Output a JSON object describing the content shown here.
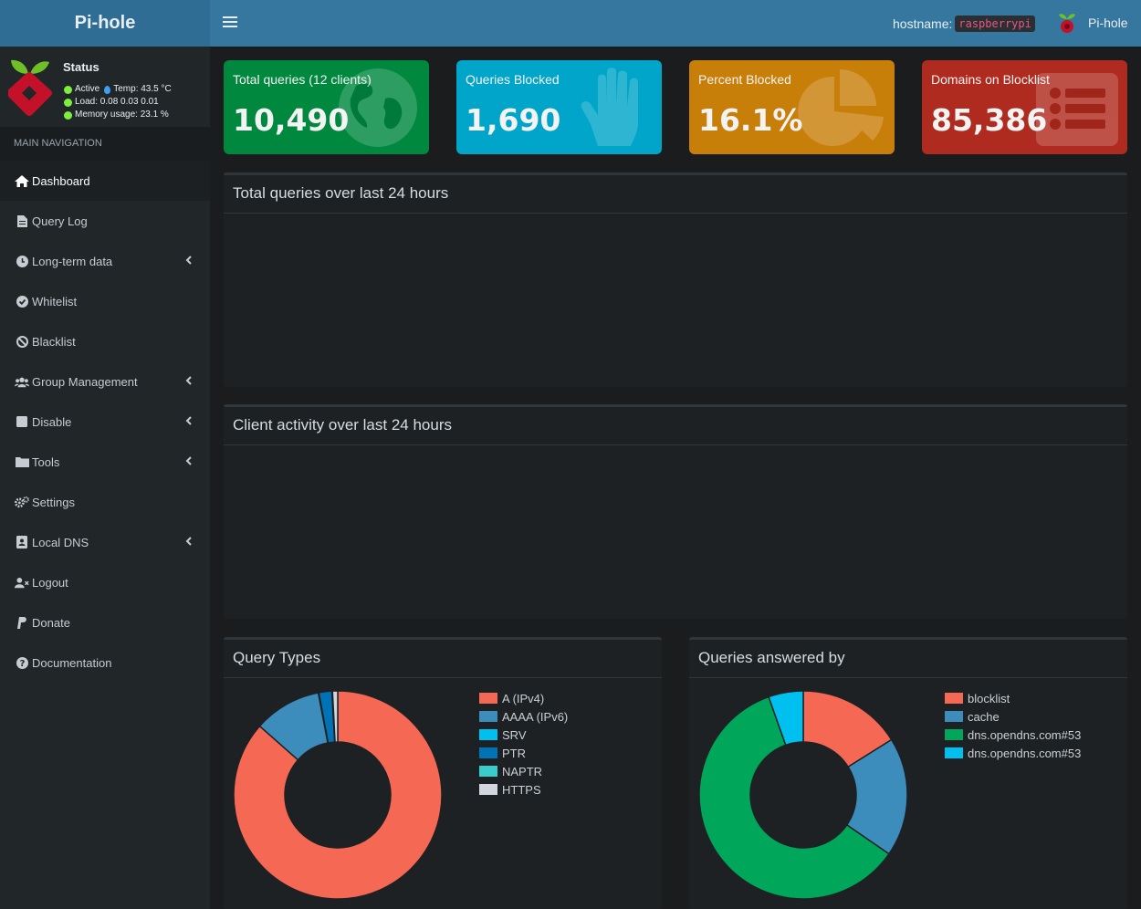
{
  "header": {
    "logo": "Pi-hole",
    "hostname_label": "hostname:",
    "hostname_value": "raspberrypi",
    "user": "Pi-hole"
  },
  "status": {
    "title": "Status",
    "active": "Active",
    "temp": "Temp: 43.5 °C",
    "load": "Load:  0.08  0.03  0.01",
    "memory": "Memory usage:  23.1 %"
  },
  "nav": {
    "header": "MAIN NAVIGATION",
    "items": [
      {
        "label": "Dashboard",
        "icon": "home-icon"
      },
      {
        "label": "Query Log",
        "icon": "file-icon"
      },
      {
        "label": "Long-term data",
        "icon": "clock-icon"
      },
      {
        "label": "Whitelist",
        "icon": "check-circle-icon"
      },
      {
        "label": "Blacklist",
        "icon": "ban-icon"
      },
      {
        "label": "Group Management",
        "icon": "users-icon"
      },
      {
        "label": "Disable",
        "icon": "stop-icon"
      },
      {
        "label": "Tools",
        "icon": "folder-icon"
      },
      {
        "label": "Settings",
        "icon": "gears-icon"
      },
      {
        "label": "Local DNS",
        "icon": "address-book-icon"
      },
      {
        "label": "Logout",
        "icon": "user-times-icon"
      },
      {
        "label": "Donate",
        "icon": "paypal-icon"
      },
      {
        "label": "Documentation",
        "icon": "question-circle-icon"
      }
    ]
  },
  "stats": [
    {
      "label": "Total queries (12 clients)",
      "value": "10,490",
      "color": "#00883f",
      "icon": "globe-icon"
    },
    {
      "label": "Queries Blocked",
      "value": "1,690",
      "color": "#00a5c9",
      "icon": "hand-icon"
    },
    {
      "label": "Percent Blocked",
      "value": "16.1%",
      "color": "#c87f0a",
      "icon": "pie-chart-icon"
    },
    {
      "label": "Domains on Blocklist",
      "value": "85,386",
      "color": "#b02b1f",
      "icon": "list-icon"
    }
  ],
  "panels": {
    "total_queries": "Total queries over last 24 hours",
    "client_activity": "Client activity over last 24 hours",
    "query_types": "Query Types",
    "answered_by": "Queries answered by"
  },
  "chart_data": [
    {
      "type": "pie",
      "title": "Query Types",
      "labels": [
        "A (IPv4)",
        "AAAA (IPv6)",
        "SRV",
        "PTR",
        "NAPTR",
        "HTTPS"
      ],
      "values": [
        86.5,
        10.5,
        0.1,
        2.0,
        0.1,
        0.8
      ],
      "colors": [
        "#f56954",
        "#3c8dbc",
        "#00c0ef",
        "#0073b7",
        "#39cccc",
        "#d2d6de"
      ],
      "legend": "right"
    },
    {
      "type": "pie",
      "title": "Queries answered by",
      "labels": [
        "blocklist",
        "cache",
        "dns.opendns.com#53",
        "dns.opendns.com#53"
      ],
      "values": [
        16.1,
        18.5,
        60.0,
        5.4
      ],
      "colors": [
        "#f56954",
        "#3c8dbc",
        "#00a65a",
        "#00c0ef"
      ],
      "legend": "right"
    }
  ]
}
